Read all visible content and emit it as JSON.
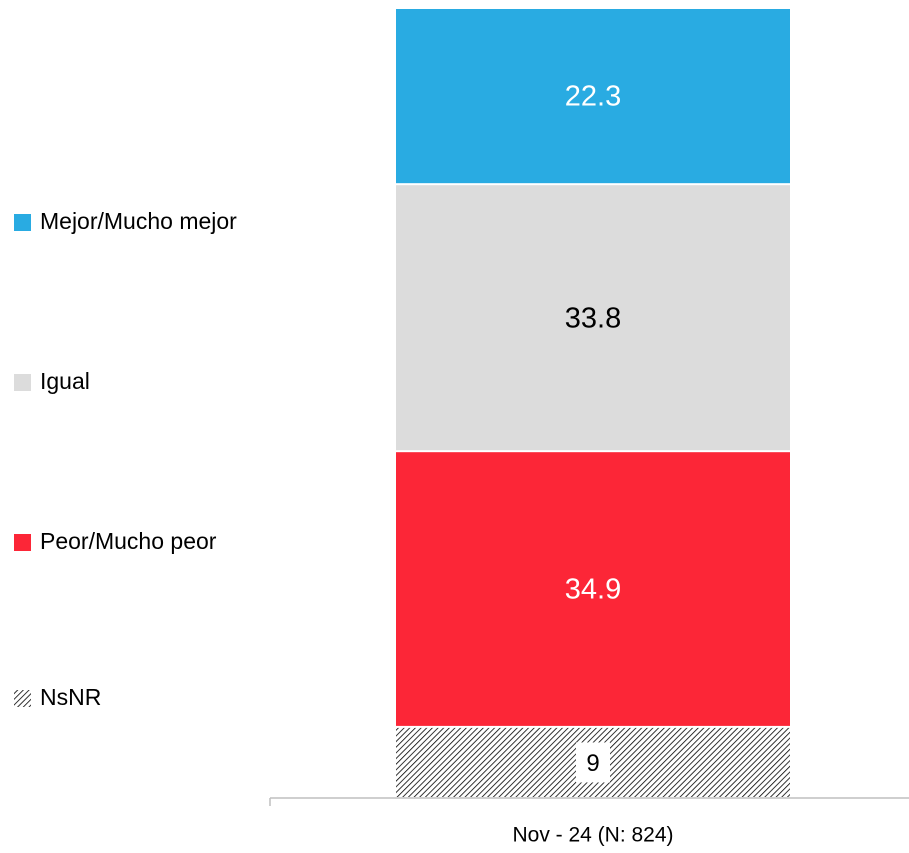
{
  "chart_data": {
    "type": "stacked-bar",
    "categories": [
      "Nov - 24 (N: 824)"
    ],
    "series": [
      {
        "name": "Mejor/Mucho mejor",
        "color": "#29abe2",
        "label_color": "#ffffff",
        "values": [
          22.3
        ]
      },
      {
        "name": "Igual",
        "color": "#dcdcdc",
        "label_color": "#000000",
        "values": [
          33.8
        ]
      },
      {
        "name": "Peor/Mucho peor",
        "color": "#fc2637",
        "label_color": "#ffffff",
        "values": [
          34.9
        ]
      },
      {
        "name": "NsNR",
        "color": "#000000",
        "hatch": true,
        "label_color": "#000000",
        "values": [
          9
        ]
      }
    ],
    "ylim": [
      0,
      100
    ],
    "legend": "left"
  }
}
